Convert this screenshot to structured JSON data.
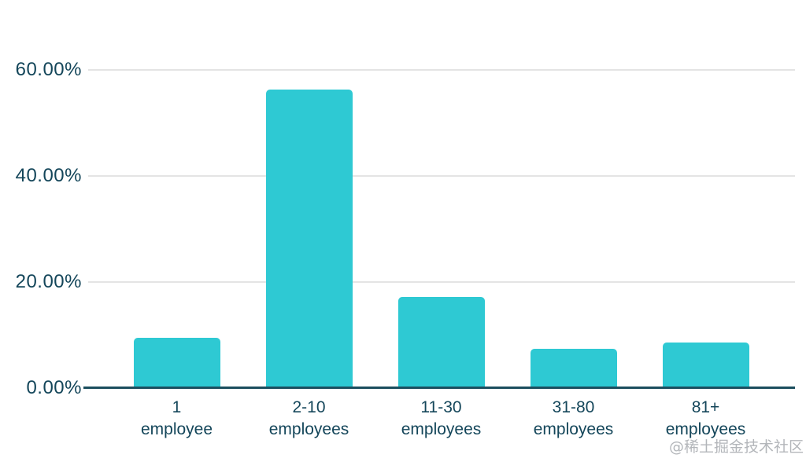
{
  "chart_data": {
    "type": "bar",
    "title": "",
    "xlabel": "",
    "ylabel": "",
    "categories": [
      "1 employee",
      "2-10 employees",
      "11-30 employees",
      "31-80 employees",
      "81+ employees"
    ],
    "category_lines": [
      [
        "1",
        "employee"
      ],
      [
        "2-10",
        "employees"
      ],
      [
        "11-30",
        "employees"
      ],
      [
        "31-80",
        "employees"
      ],
      [
        "81+",
        "employees"
      ]
    ],
    "values": [
      9.5,
      56.3,
      17.2,
      7.4,
      8.6
    ],
    "ylim": [
      0,
      60
    ],
    "yticks": [
      0,
      20,
      40,
      60
    ],
    "ytick_labels": [
      "0.00%",
      "20.00%",
      "40.00%",
      "60.00%"
    ],
    "grid": true,
    "legend": false,
    "colors": {
      "bar": "#2ec9d3",
      "axis": "#1b4e5e",
      "label_text": "#14465a",
      "gridline": "#e4e4e4"
    }
  },
  "watermark": {
    "text": "@稀土掘金技术社区",
    "color": "#b3b6ba"
  }
}
